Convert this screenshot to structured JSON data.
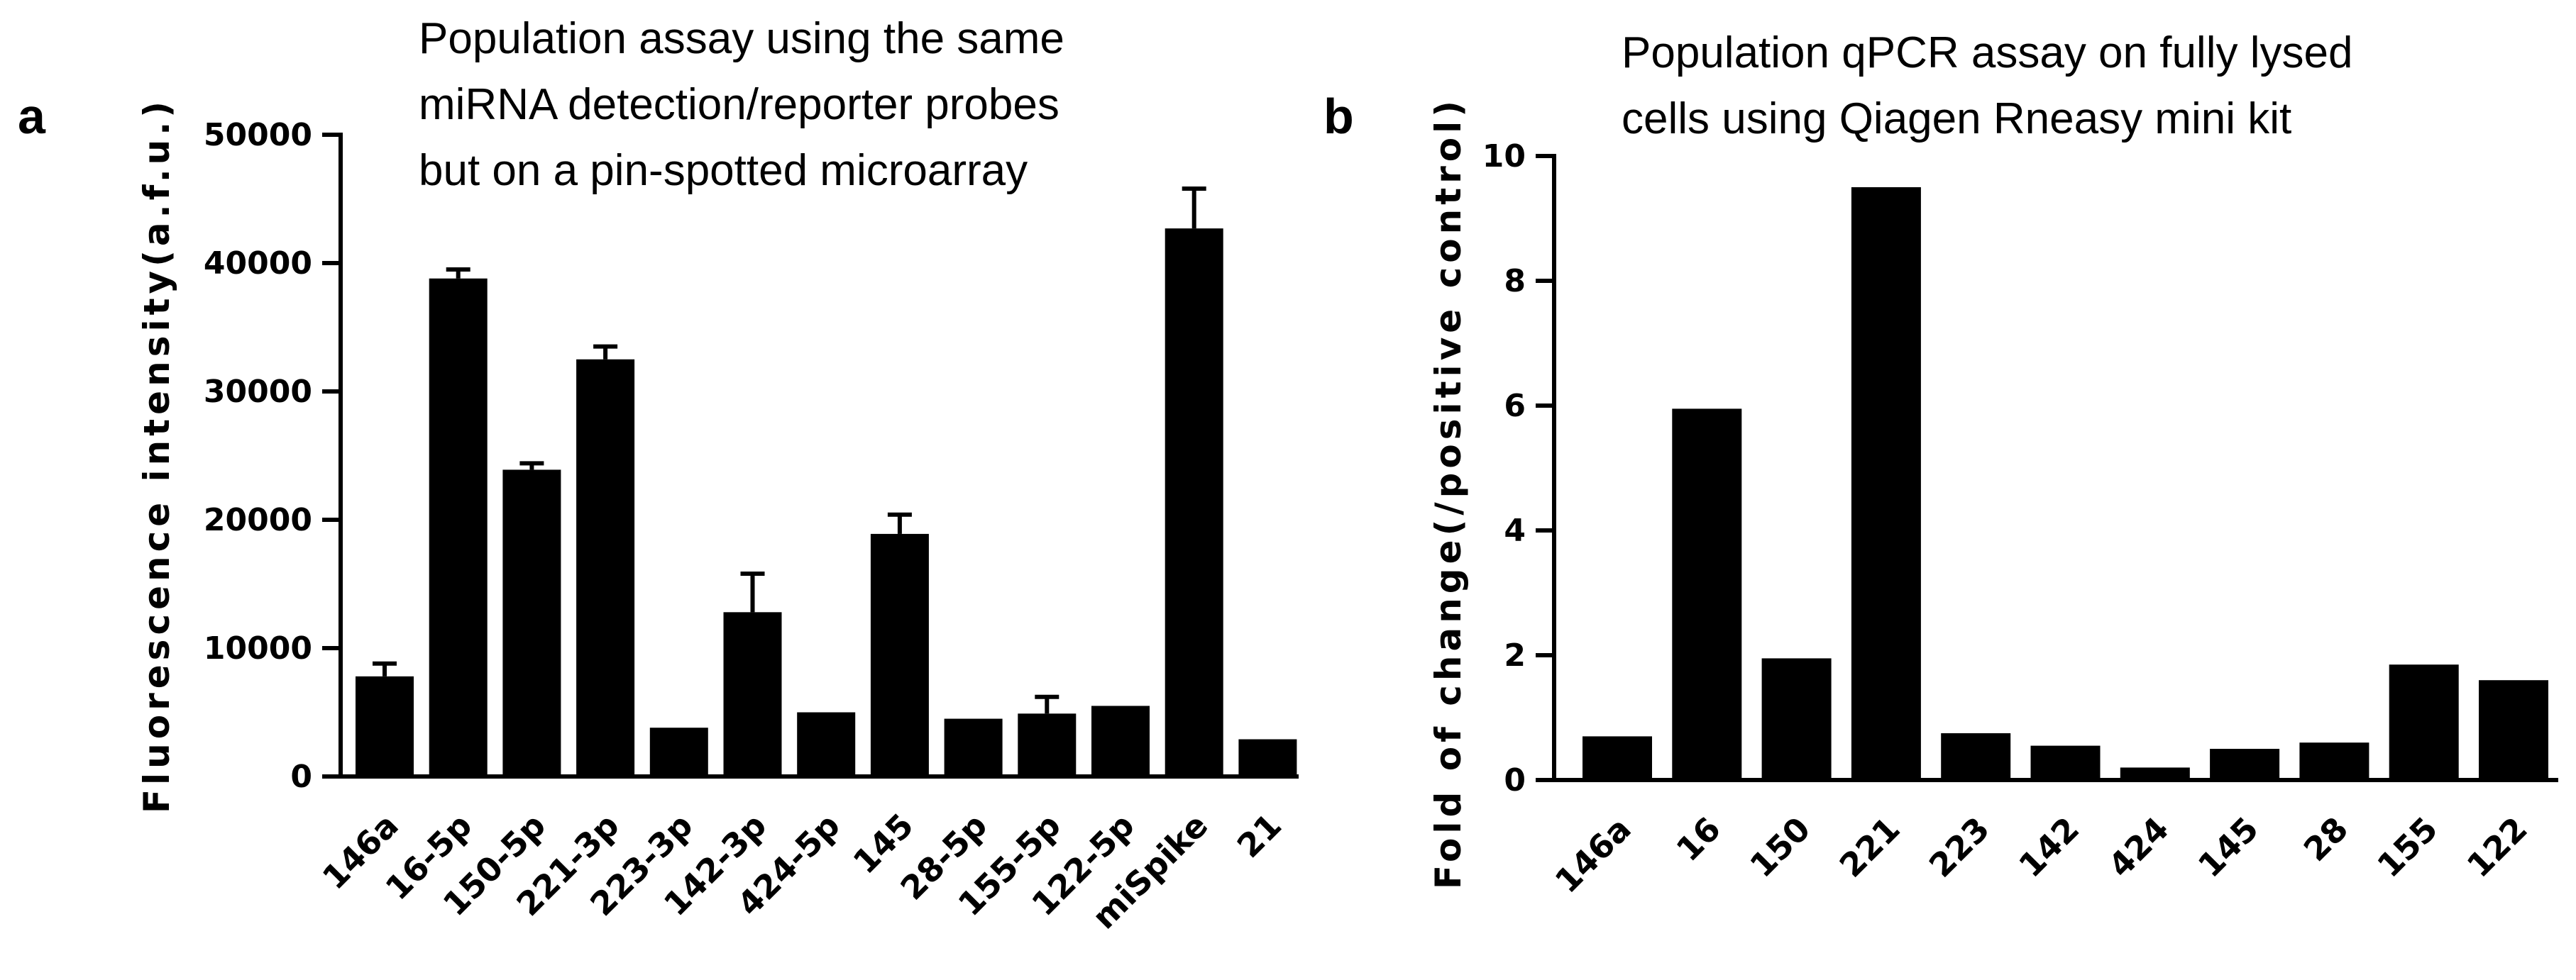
{
  "chart_data": [
    {
      "panel": "a",
      "type": "bar",
      "title_lines": [
        "Population assay using the same",
        "miRNA detection/reporter probes",
        "but on a pin-spotted microarray"
      ],
      "ylabel": "Fluorescence intensity(a.f.u.)",
      "xlabel": "",
      "ylim": [
        0,
        50000
      ],
      "yticks": [
        0,
        10000,
        20000,
        30000,
        40000,
        50000
      ],
      "ytick_labels": [
        "0",
        "10000",
        "20000",
        "30000",
        "40000",
        "50000"
      ],
      "categories": [
        "146a",
        "16-5p",
        "150-5p",
        "221-3p",
        "223-3p",
        "142-3p",
        "424-5p",
        "145",
        "28-5p",
        "155-5p",
        "122-5p",
        "miSpike",
        "21"
      ],
      "values": [
        7800,
        38800,
        23900,
        32500,
        3800,
        12800,
        5000,
        18900,
        4500,
        4900,
        5500,
        42700,
        2900
      ],
      "errors": [
        1000,
        700,
        500,
        1000,
        0,
        3000,
        0,
        1500,
        0,
        1300,
        0,
        3100,
        0
      ],
      "grid": false
    },
    {
      "panel": "b",
      "type": "bar",
      "title_lines": [
        "Population qPCR assay on fully lysed",
        "cells using Qiagen Rneasy mini kit"
      ],
      "ylabel": "Fold of change(/positive control)",
      "xlabel": "",
      "ylim": [
        0,
        10
      ],
      "yticks": [
        0,
        2,
        4,
        6,
        8,
        10
      ],
      "ytick_labels": [
        "0",
        "2",
        "4",
        "6",
        "8",
        "10"
      ],
      "categories": [
        "146a",
        "16",
        "150",
        "221",
        "223",
        "142",
        "424",
        "145",
        "28",
        "155",
        "122"
      ],
      "values": [
        0.7,
        5.95,
        1.95,
        9.5,
        0.75,
        0.55,
        0.2,
        0.5,
        0.6,
        1.85,
        1.6
      ],
      "errors": [
        0,
        0,
        0,
        0,
        0,
        0,
        0,
        0,
        0,
        0,
        0
      ],
      "grid": false
    }
  ]
}
